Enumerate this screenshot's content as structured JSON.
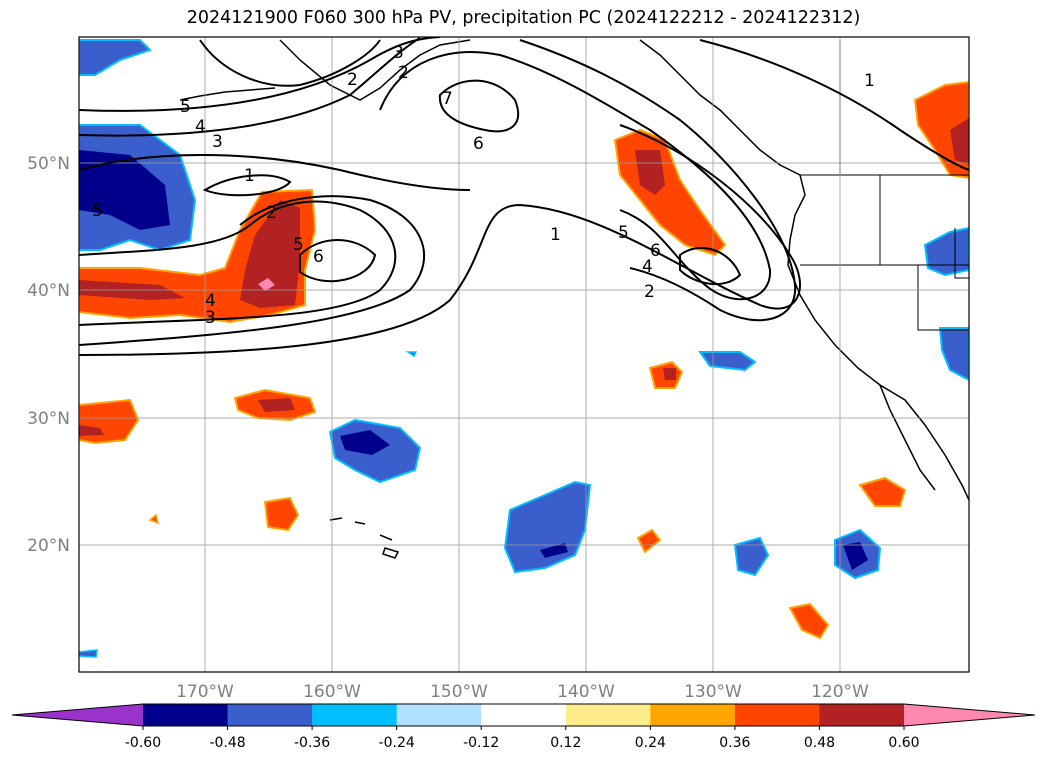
{
  "title": "2024121900 F060 300 hPa PV, precipitation PC (2024122212 - 2024122312)",
  "chart_data": {
    "type": "contour_map",
    "title": "2024121900 F060 300 hPa PV, precipitation PC (2024122212 - 2024122312)",
    "lat_ticks": [
      "50°N",
      "40°N",
      "30°N",
      "20°N"
    ],
    "lon_ticks": [
      "170°W",
      "160°W",
      "150°W",
      "140°W",
      "130°W",
      "120°W"
    ],
    "grid": true,
    "colorbar": {
      "orientation": "horizontal",
      "extend": "both",
      "levels": [
        "-0.60",
        "-0.48",
        "-0.36",
        "-0.24",
        "-0.12",
        "0.12",
        "0.24",
        "0.36",
        "0.48",
        "0.60"
      ],
      "colors": [
        "#9933cc",
        "#00008b",
        "#3a5fcd",
        "#00bfff",
        "#b0e2ff",
        "#ffffff",
        "#ffec8b",
        "#ffa500",
        "#ff4500",
        "#b22222",
        "#ff88b0"
      ]
    },
    "contour_labels": [
      {
        "text": "5"
      },
      {
        "text": "4"
      },
      {
        "text": "3"
      },
      {
        "text": "1"
      },
      {
        "text": "2"
      },
      {
        "text": "5"
      },
      {
        "text": "6"
      },
      {
        "text": "4"
      },
      {
        "text": "3"
      },
      {
        "text": "7"
      },
      {
        "text": "6"
      },
      {
        "text": "1"
      },
      {
        "text": "5"
      },
      {
        "text": "6"
      },
      {
        "text": "4"
      },
      {
        "text": "2"
      },
      {
        "text": "1"
      },
      {
        "text": "2"
      },
      {
        "text": "3"
      },
      {
        "text": "2"
      },
      {
        "text": "5"
      }
    ]
  }
}
